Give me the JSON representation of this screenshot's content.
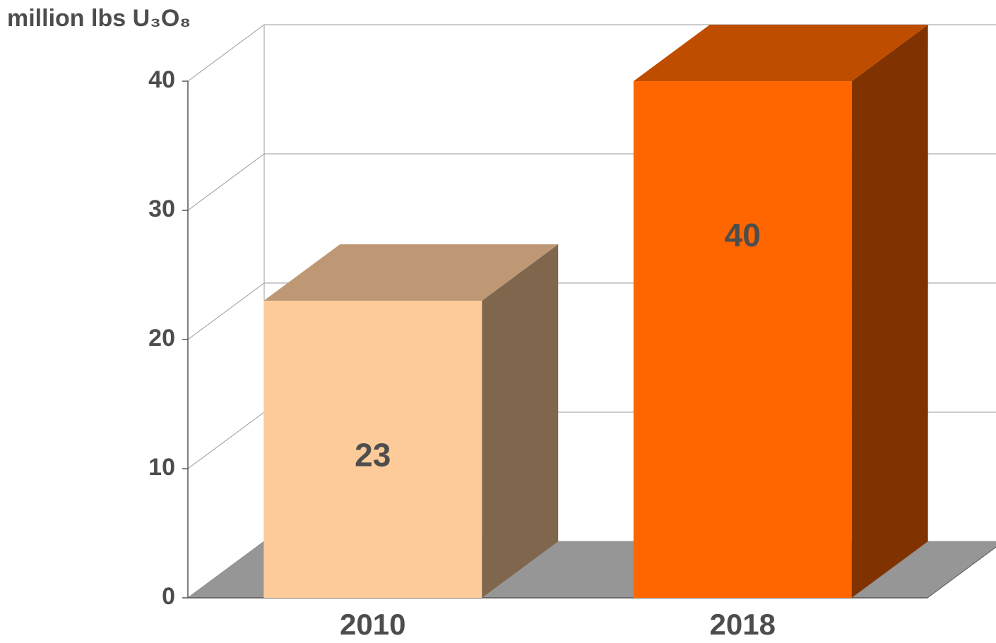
{
  "chart_data": {
    "type": "bar3d",
    "y_axis_label": "million lbs U₃O₈",
    "categories": [
      "2010",
      "2018"
    ],
    "values": [
      23,
      40
    ],
    "colors": [
      "#fdcb9a",
      "#ff6600"
    ],
    "ylim": [
      0,
      40
    ],
    "yticks": [
      0,
      10,
      20,
      30,
      40
    ],
    "grid": true
  }
}
